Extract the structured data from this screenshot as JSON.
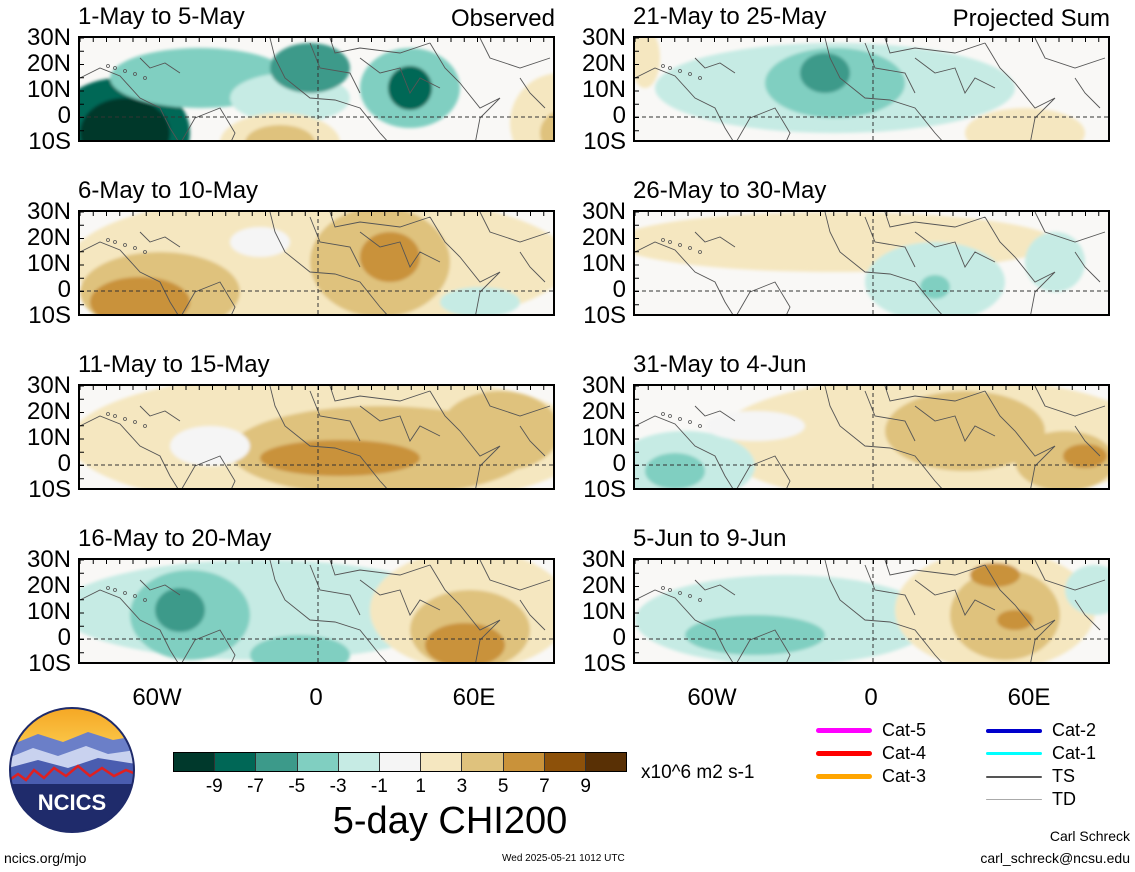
{
  "panels": [
    {
      "date": "1-May to 5-May",
      "kind": "Observed",
      "col": 0,
      "row": 0,
      "blobs": [
        {
          "cx": 40,
          "cy": 95,
          "rx": 70,
          "ry": 55,
          "level": -9
        },
        {
          "cx": 45,
          "cy": 95,
          "rx": 45,
          "ry": 35,
          "level": -10
        },
        {
          "cx": 120,
          "cy": 40,
          "rx": 90,
          "ry": 30,
          "level": -3
        },
        {
          "cx": 210,
          "cy": 60,
          "rx": 60,
          "ry": 25,
          "level": -2
        },
        {
          "cx": 230,
          "cy": 30,
          "rx": 40,
          "ry": 25,
          "level": -5
        },
        {
          "cx": 330,
          "cy": 50,
          "rx": 50,
          "ry": 40,
          "level": -4
        },
        {
          "cx": 330,
          "cy": 50,
          "rx": 22,
          "ry": 22,
          "level": -8
        },
        {
          "cx": 200,
          "cy": 105,
          "rx": 60,
          "ry": 30,
          "level": 2
        },
        {
          "cx": 200,
          "cy": 105,
          "rx": 35,
          "ry": 18,
          "level": 4
        },
        {
          "cx": 480,
          "cy": 85,
          "rx": 50,
          "ry": 50,
          "level": 2
        },
        {
          "cx": 490,
          "cy": 95,
          "rx": 30,
          "ry": 25,
          "level": 4
        }
      ]
    },
    {
      "date": "6-May to 10-May",
      "kind": "",
      "col": 0,
      "row": 1,
      "blobs": [
        {
          "cx": 240,
          "cy": 50,
          "rx": 250,
          "ry": 70,
          "level": 2
        },
        {
          "cx": 80,
          "cy": 80,
          "rx": 80,
          "ry": 40,
          "level": 4
        },
        {
          "cx": 60,
          "cy": 90,
          "rx": 50,
          "ry": 25,
          "level": 6
        },
        {
          "cx": 300,
          "cy": 50,
          "rx": 70,
          "ry": 55,
          "level": 4
        },
        {
          "cx": 310,
          "cy": 45,
          "rx": 30,
          "ry": 25,
          "level": 6
        },
        {
          "cx": 400,
          "cy": 90,
          "rx": 40,
          "ry": 15,
          "level": -2
        },
        {
          "cx": 180,
          "cy": 30,
          "rx": 30,
          "ry": 15,
          "level": 0
        }
      ]
    },
    {
      "date": "11-May to 15-May",
      "kind": "",
      "col": 0,
      "row": 2,
      "blobs": [
        {
          "cx": 250,
          "cy": 55,
          "rx": 260,
          "ry": 70,
          "level": 2
        },
        {
          "cx": 300,
          "cy": 65,
          "rx": 150,
          "ry": 45,
          "level": 4
        },
        {
          "cx": 260,
          "cy": 72,
          "rx": 80,
          "ry": 18,
          "level": 6
        },
        {
          "cx": 130,
          "cy": 60,
          "rx": 40,
          "ry": 20,
          "level": 0
        },
        {
          "cx": 420,
          "cy": 45,
          "rx": 60,
          "ry": 40,
          "level": 4
        }
      ]
    },
    {
      "date": "16-May to 20-May",
      "kind": "",
      "col": 0,
      "row": 3,
      "blobs": [
        {
          "cx": 180,
          "cy": 50,
          "rx": 200,
          "ry": 50,
          "level": -2
        },
        {
          "cx": 110,
          "cy": 55,
          "rx": 60,
          "ry": 45,
          "level": -4
        },
        {
          "cx": 100,
          "cy": 50,
          "rx": 25,
          "ry": 22,
          "level": -6
        },
        {
          "cx": 220,
          "cy": 95,
          "rx": 50,
          "ry": 20,
          "level": -3
        },
        {
          "cx": 390,
          "cy": 50,
          "rx": 100,
          "ry": 60,
          "level": 2
        },
        {
          "cx": 390,
          "cy": 70,
          "rx": 60,
          "ry": 40,
          "level": 4
        },
        {
          "cx": 385,
          "cy": 85,
          "rx": 40,
          "ry": 22,
          "level": 6
        }
      ]
    },
    {
      "date": "21-May to 25-May",
      "kind": "Projected Sum",
      "col": 1,
      "row": 0,
      "blobs": [
        {
          "cx": 200,
          "cy": 50,
          "rx": 180,
          "ry": 45,
          "level": -2
        },
        {
          "cx": 200,
          "cy": 45,
          "rx": 70,
          "ry": 35,
          "level": -4
        },
        {
          "cx": 190,
          "cy": 35,
          "rx": 25,
          "ry": 20,
          "level": -7
        },
        {
          "cx": 390,
          "cy": 95,
          "rx": 60,
          "ry": 25,
          "level": 2
        },
        {
          "cx": 10,
          "cy": 20,
          "rx": 15,
          "ry": 30,
          "level": 3
        }
      ]
    },
    {
      "date": "26-May to 30-May",
      "kind": "",
      "col": 1,
      "row": 1,
      "blobs": [
        {
          "cx": 200,
          "cy": 30,
          "rx": 220,
          "ry": 30,
          "level": 2
        },
        {
          "cx": 300,
          "cy": 70,
          "rx": 70,
          "ry": 40,
          "level": -2
        },
        {
          "cx": 300,
          "cy": 75,
          "rx": 15,
          "ry": 12,
          "level": -4
        },
        {
          "cx": 420,
          "cy": 50,
          "rx": 30,
          "ry": 30,
          "level": -2
        }
      ]
    },
    {
      "date": "31-May to 4-Jun",
      "kind": "",
      "col": 1,
      "row": 2,
      "blobs": [
        {
          "cx": 300,
          "cy": 55,
          "rx": 220,
          "ry": 65,
          "level": 2
        },
        {
          "cx": 330,
          "cy": 45,
          "rx": 80,
          "ry": 40,
          "level": 4
        },
        {
          "cx": 430,
          "cy": 75,
          "rx": 50,
          "ry": 30,
          "level": 4
        },
        {
          "cx": 450,
          "cy": 70,
          "rx": 22,
          "ry": 12,
          "level": 6
        },
        {
          "cx": 50,
          "cy": 80,
          "rx": 70,
          "ry": 35,
          "level": -2
        },
        {
          "cx": 40,
          "cy": 85,
          "rx": 30,
          "ry": 18,
          "level": -4
        },
        {
          "cx": 120,
          "cy": 40,
          "rx": 50,
          "ry": 15,
          "level": 0
        }
      ]
    },
    {
      "date": "5-Jun to 9-Jun",
      "kind": "",
      "col": 1,
      "row": 3,
      "blobs": [
        {
          "cx": 150,
          "cy": 60,
          "rx": 150,
          "ry": 45,
          "level": -2
        },
        {
          "cx": 120,
          "cy": 75,
          "rx": 70,
          "ry": 20,
          "level": -3
        },
        {
          "cx": 360,
          "cy": 50,
          "rx": 100,
          "ry": 60,
          "level": 2
        },
        {
          "cx": 370,
          "cy": 55,
          "rx": 55,
          "ry": 45,
          "level": 4
        },
        {
          "cx": 360,
          "cy": 15,
          "rx": 25,
          "ry": 12,
          "level": 6
        },
        {
          "cx": 380,
          "cy": 60,
          "rx": 18,
          "ry": 10,
          "level": 6
        },
        {
          "cx": 460,
          "cy": 30,
          "rx": 30,
          "ry": 25,
          "level": -2
        }
      ]
    }
  ],
  "lat_labels": [
    "30N",
    "20N",
    "10N",
    "0",
    "10S"
  ],
  "lon_labels": [
    "60W",
    "0",
    "60E"
  ],
  "colorbar": {
    "colors": [
      "#00392c",
      "#006756",
      "#3c9a8a",
      "#80cfc1",
      "#c6ebe4",
      "#f5f5f5",
      "#f5e7c0",
      "#dfc27d",
      "#c9923a",
      "#8d510a",
      "#593005"
    ],
    "ticks": [
      "-9",
      "-7",
      "-5",
      "-3",
      "-1",
      "1",
      "3",
      "5",
      "7",
      "9"
    ],
    "units": "x10^6 m2 s-1",
    "title": "5-day CHI200"
  },
  "legend": [
    {
      "label": "Cat-5",
      "color": "#ff00ff",
      "width": 5
    },
    {
      "label": "Cat-4",
      "color": "#ff0000",
      "width": 5
    },
    {
      "label": "Cat-3",
      "color": "#ffa500",
      "width": 5
    },
    {
      "label": "Cat-2",
      "color": "#0000cc",
      "width": 4
    },
    {
      "label": "Cat-1",
      "color": "#00ffff",
      "width": 3
    },
    {
      "label": "TS",
      "color": "#555555",
      "width": 2
    },
    {
      "label": "TD",
      "color": "#aaaaaa",
      "width": 1
    }
  ],
  "logo": {
    "text": "NCICS"
  },
  "footer": {
    "url": "ncics.org/mjo",
    "timestamp": "Wed 2025-05-21 1012 UTC",
    "author": "Carl Schreck",
    "email": "carl_schreck@ncsu.edu"
  }
}
